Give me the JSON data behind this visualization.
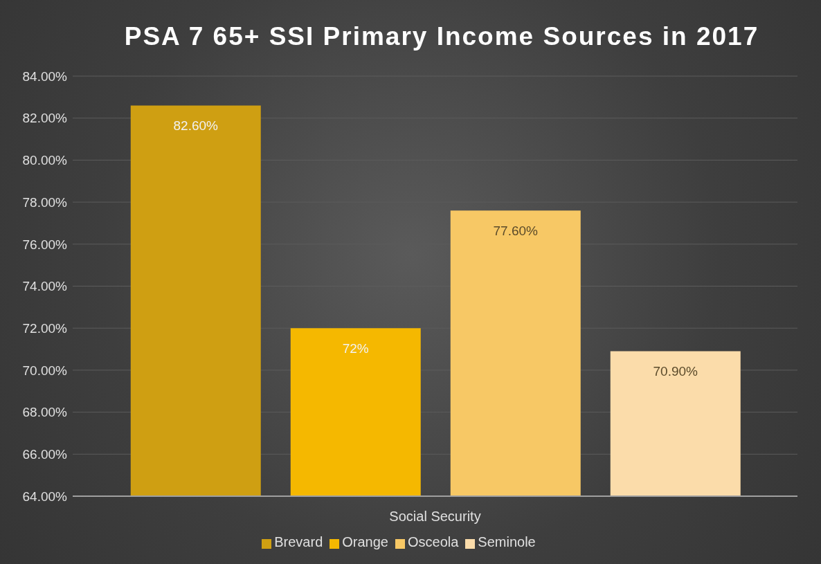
{
  "chart_data": {
    "type": "bar",
    "title": "PSA 7 65+ SSI Primary Income Sources in 2017",
    "categories": [
      "Social Security"
    ],
    "series": [
      {
        "name": "Brevard",
        "color": "#cf9f12",
        "values": [
          82.6
        ],
        "value_labels": [
          "82.60%"
        ]
      },
      {
        "name": "Orange",
        "color": "#f5b800",
        "values": [
          72
        ],
        "value_labels": [
          "72%"
        ]
      },
      {
        "name": "Osceola",
        "color": "#f7c865",
        "values": [
          77.6
        ],
        "value_labels": [
          "77.60%"
        ]
      },
      {
        "name": "Seminole",
        "color": "#fbdcaa",
        "values": [
          70.9
        ],
        "value_labels": [
          "70.90%"
        ]
      }
    ],
    "ylim": [
      64,
      84
    ],
    "yticks": [
      {
        "value": 64,
        "label": "64.00%"
      },
      {
        "value": 66,
        "label": "66.00%"
      },
      {
        "value": 68,
        "label": "68.00%"
      },
      {
        "value": 70,
        "label": "70.00%"
      },
      {
        "value": 72,
        "label": "72.00%"
      },
      {
        "value": 74,
        "label": "74.00%"
      },
      {
        "value": 76,
        "label": "76.00%"
      },
      {
        "value": 78,
        "label": "78.00%"
      },
      {
        "value": 80,
        "label": "80.00%"
      },
      {
        "value": 82,
        "label": "82.00%"
      },
      {
        "value": 84,
        "label": "84.00%"
      }
    ],
    "grid": "y",
    "legend": "bottom"
  }
}
